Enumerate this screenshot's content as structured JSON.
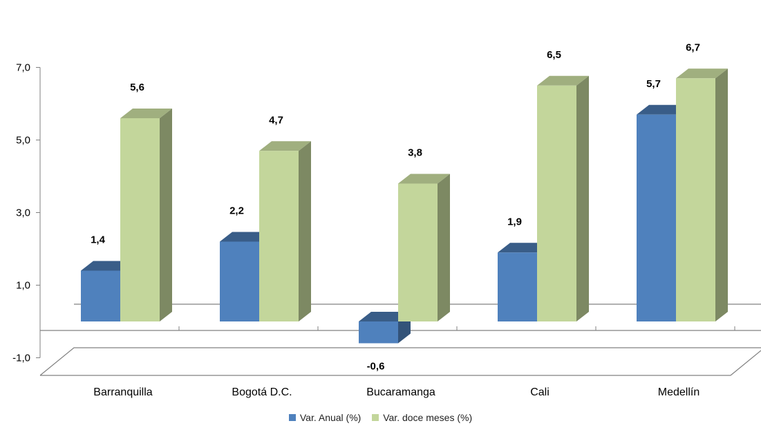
{
  "chart_data": {
    "type": "bar",
    "categories": [
      "Barranquilla",
      "Bogotá D.C.",
      "Bucaramanga",
      "Cali",
      "Medellín"
    ],
    "series": [
      {
        "name": "Var. Anual (%)",
        "values": [
          1.4,
          2.2,
          -0.6,
          1.9,
          5.7
        ],
        "color": "#4F81BD"
      },
      {
        "name": "Var. doce meses (%)",
        "values": [
          5.6,
          4.7,
          3.8,
          6.5,
          6.7
        ],
        "color": "#C3D69B"
      }
    ],
    "data_labels": [
      [
        "1,4",
        "2,2",
        "-0,6",
        "1,9",
        "5,7"
      ],
      [
        "5,6",
        "4,7",
        "3,8",
        "6,5",
        "6,7"
      ]
    ],
    "yticks": [
      "-1,0",
      "1,0",
      "3,0",
      "5,0",
      "7,0"
    ],
    "ylim": [
      -1,
      7
    ],
    "legend": "bottom",
    "grid": false,
    "style": "3d-clustered-column"
  }
}
